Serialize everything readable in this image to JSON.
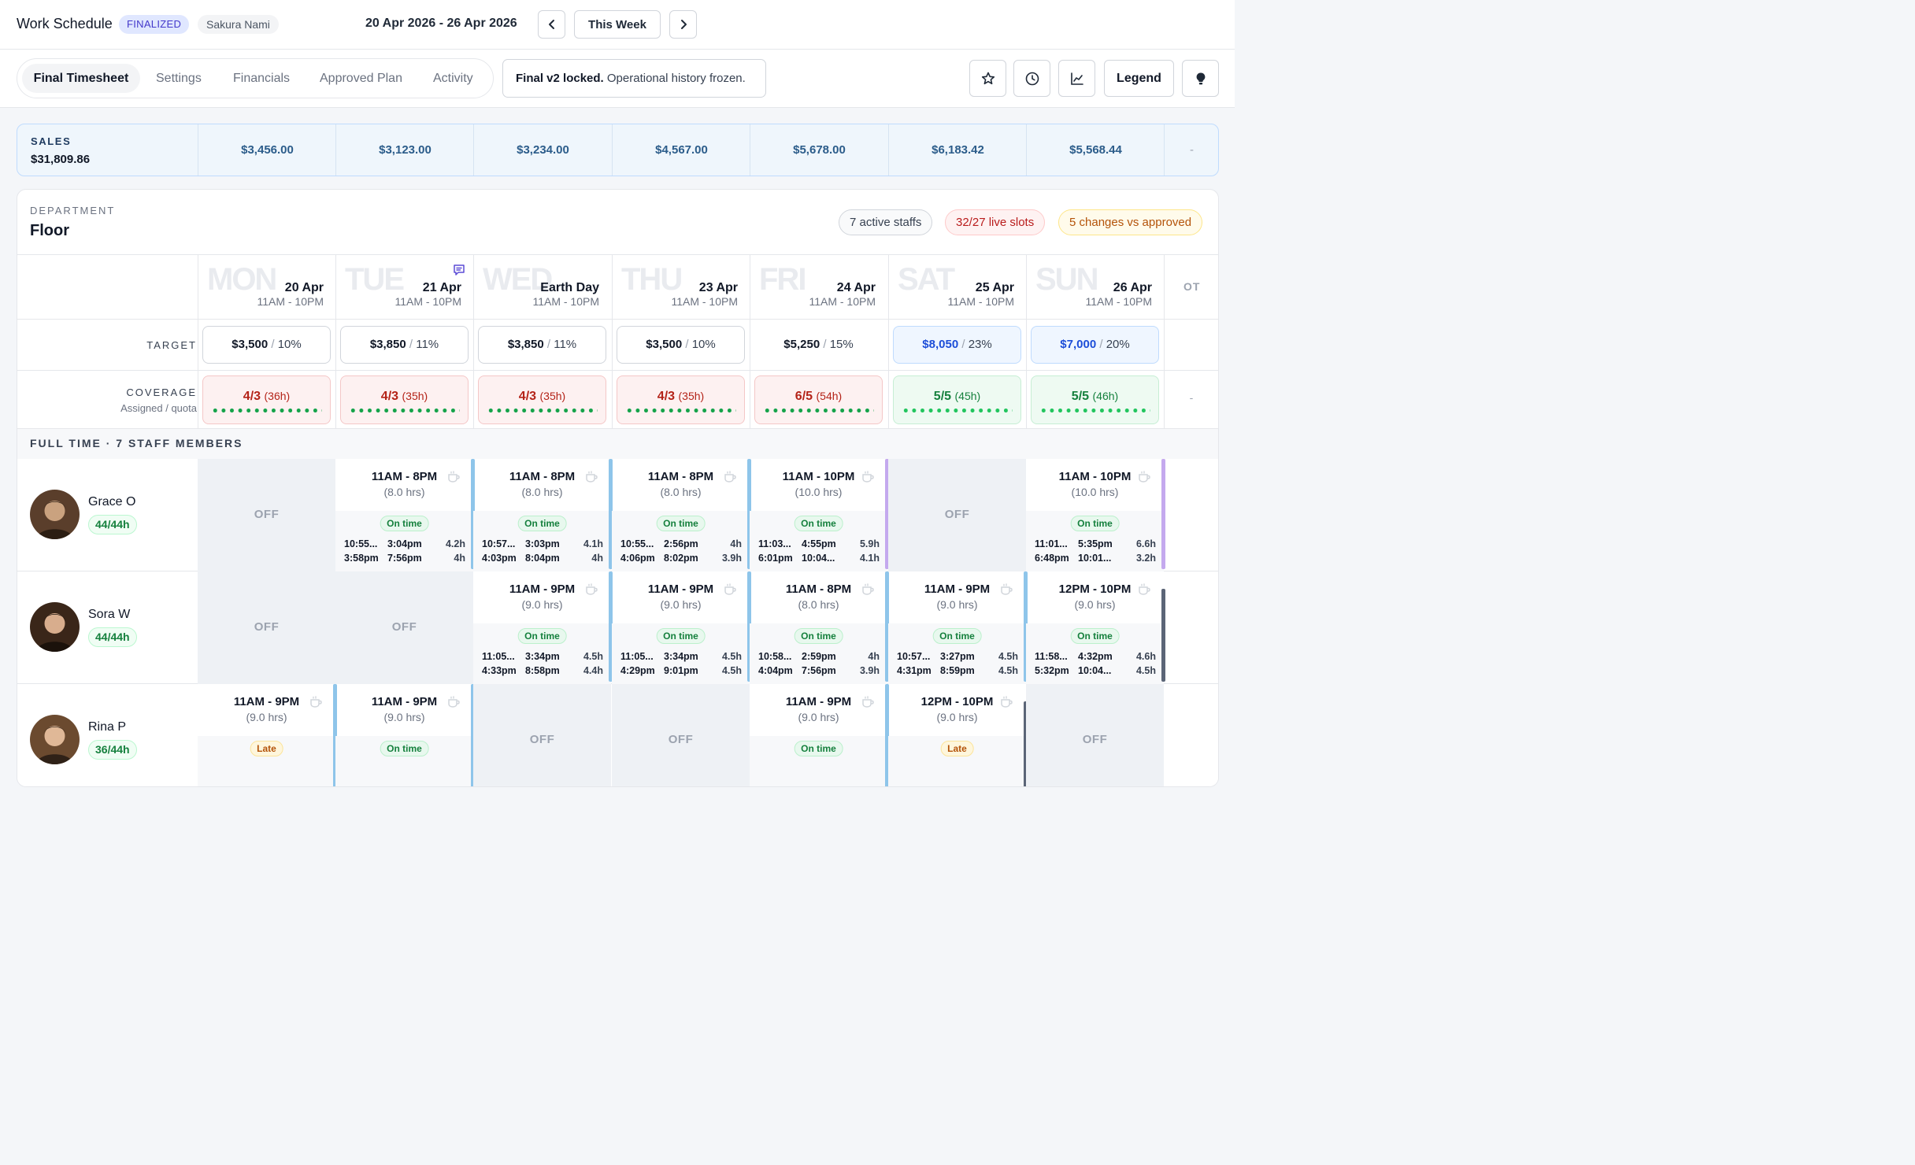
{
  "header": {
    "title": "Work Schedule",
    "status_badge": "FINALIZED",
    "user": "Sakura Nami",
    "date_range": "20 Apr 2026 - 26 Apr 2026",
    "this_week_label": "This Week"
  },
  "tabs": [
    "Final Timesheet",
    "Settings",
    "Financials",
    "Approved Plan",
    "Activity"
  ],
  "active_tab": "Final Timesheet",
  "lock_message": {
    "bold": "Final v2 locked.",
    "rest": "Operational history frozen."
  },
  "toolbar": {
    "legend_label": "Legend",
    "icons": [
      "star-icon",
      "clock-icon",
      "chart-icon",
      "lightbulb-icon"
    ]
  },
  "sales": {
    "label": "SALES",
    "total": "$31,809.86",
    "days": [
      "$3,456.00",
      "$3,123.00",
      "$3,234.00",
      "$4,567.00",
      "$5,678.00",
      "$6,183.42",
      "$5,568.44"
    ],
    "ot": "-"
  },
  "department": {
    "label": "DEPARTMENT",
    "name": "Floor",
    "pills": {
      "active": "7 active staffs",
      "slots": "32/27 live slots",
      "changes": "5 changes vs approved"
    }
  },
  "days": [
    {
      "abbr": "MON",
      "date": "20 Apr",
      "hours": "11AM - 10PM"
    },
    {
      "abbr": "TUE",
      "date": "21 Apr",
      "hours": "11AM - 10PM",
      "note": true
    },
    {
      "abbr": "WED",
      "date": "Earth Day",
      "hours": "11AM - 10PM"
    },
    {
      "abbr": "THU",
      "date": "23 Apr",
      "hours": "11AM - 10PM"
    },
    {
      "abbr": "FRI",
      "date": "24 Apr",
      "hours": "11AM - 10PM"
    },
    {
      "abbr": "SAT",
      "date": "25 Apr",
      "hours": "11AM - 10PM"
    },
    {
      "abbr": "SUN",
      "date": "26 Apr",
      "hours": "11AM - 10PM"
    }
  ],
  "ot_label": "OT",
  "target": {
    "label": "TARGET",
    "values": [
      {
        "amount": "$3,500",
        "pct": "10%"
      },
      {
        "amount": "$3,850",
        "pct": "11%"
      },
      {
        "amount": "$3,850",
        "pct": "11%"
      },
      {
        "amount": "$3,500",
        "pct": "10%"
      },
      {
        "amount": "$5,250",
        "pct": "15%"
      },
      {
        "amount": "$8,050",
        "pct": "23%"
      },
      {
        "amount": "$7,000",
        "pct": "20%"
      }
    ]
  },
  "coverage": {
    "label": "COVERAGE",
    "sublabel": "Assigned / quota",
    "values": [
      {
        "ratio": "4/3",
        "hrs": "(36h)",
        "state": "over"
      },
      {
        "ratio": "4/3",
        "hrs": "(35h)",
        "state": "over"
      },
      {
        "ratio": "4/3",
        "hrs": "(35h)",
        "state": "over"
      },
      {
        "ratio": "4/3",
        "hrs": "(35h)",
        "state": "over"
      },
      {
        "ratio": "6/5",
        "hrs": "(54h)",
        "state": "over"
      },
      {
        "ratio": "5/5",
        "hrs": "(45h)",
        "state": "ok"
      },
      {
        "ratio": "5/5",
        "hrs": "(46h)",
        "state": "ok"
      }
    ],
    "ot": "-"
  },
  "section_label": "FULL TIME · 7 STAFF MEMBERS",
  "staff": [
    {
      "name": "Grace O",
      "hours": "44/44h",
      "shifts": [
        {
          "off": true,
          "label": "OFF"
        },
        {
          "time": "11AM - 8PM",
          "dur": "(8.0 hrs)",
          "status": "On time",
          "p1": [
            "10:55...",
            "3:04pm",
            "4.2h"
          ],
          "p2": [
            "3:58pm",
            "7:56pm",
            "4h"
          ],
          "stripe": "#8ec5ea"
        },
        {
          "time": "11AM - 8PM",
          "dur": "(8.0 hrs)",
          "status": "On time",
          "p1": [
            "10:57...",
            "3:03pm",
            "4.1h"
          ],
          "p2": [
            "4:03pm",
            "8:04pm",
            "4h"
          ],
          "stripe": "#8ec5ea"
        },
        {
          "time": "11AM - 8PM",
          "dur": "(8.0 hrs)",
          "status": "On time",
          "p1": [
            "10:55...",
            "2:56pm",
            "4h"
          ],
          "p2": [
            "4:06pm",
            "8:02pm",
            "3.9h"
          ],
          "stripe": "#8ec5ea"
        },
        {
          "time": "11AM - 10PM",
          "dur": "(10.0 hrs)",
          "status": "On time",
          "p1": [
            "11:03...",
            "4:55pm",
            "5.9h"
          ],
          "p2": [
            "6:01pm",
            "10:04...",
            "4.1h"
          ],
          "stripe": "#c4a9ee"
        },
        {
          "off": true,
          "label": "OFF"
        },
        {
          "time": "11AM - 10PM",
          "dur": "(10.0 hrs)",
          "status": "On time",
          "p1": [
            "11:01...",
            "5:35pm",
            "6.6h"
          ],
          "p2": [
            "6:48pm",
            "10:01...",
            "3.2h"
          ],
          "stripe": "#c4a9ee"
        }
      ]
    },
    {
      "name": "Sora W",
      "hours": "44/44h",
      "shifts": [
        {
          "off": true,
          "label": "OFF"
        },
        {
          "off": true,
          "label": "OFF"
        },
        {
          "time": "11AM - 9PM",
          "dur": "(9.0 hrs)",
          "status": "On time",
          "p1": [
            "11:05...",
            "3:34pm",
            "4.5h"
          ],
          "p2": [
            "4:33pm",
            "8:58pm",
            "4.4h"
          ],
          "stripe": "#8ec5ea"
        },
        {
          "time": "11AM - 9PM",
          "dur": "(9.0 hrs)",
          "status": "On time",
          "p1": [
            "11:05...",
            "3:34pm",
            "4.5h"
          ],
          "p2": [
            "4:29pm",
            "9:01pm",
            "4.5h"
          ],
          "stripe": "#8ec5ea"
        },
        {
          "time": "11AM - 8PM",
          "dur": "(8.0 hrs)",
          "status": "On time",
          "p1": [
            "10:58...",
            "2:59pm",
            "4h"
          ],
          "p2": [
            "4:04pm",
            "7:56pm",
            "3.9h"
          ],
          "stripe": "#8ec5ea"
        },
        {
          "time": "11AM - 9PM",
          "dur": "(9.0 hrs)",
          "status": "On time",
          "p1": [
            "10:57...",
            "3:27pm",
            "4.5h"
          ],
          "p2": [
            "4:31pm",
            "8:59pm",
            "4.5h"
          ],
          "stripe": "#8ec5ea"
        },
        {
          "time": "12PM - 10PM",
          "dur": "(9.0 hrs)",
          "status": "On time",
          "p1": [
            "11:58...",
            "4:32pm",
            "4.6h"
          ],
          "p2": [
            "5:32pm",
            "10:04...",
            "4.5h"
          ],
          "stripe": "#5b6577"
        }
      ]
    },
    {
      "name": "Rina P",
      "hours": "36/44h",
      "shifts": [
        {
          "time": "11AM - 9PM",
          "dur": "(9.0 hrs)",
          "status": "Late",
          "stripe": "#8ec5ea"
        },
        {
          "time": "11AM - 9PM",
          "dur": "(9.0 hrs)",
          "status": "On time",
          "stripe": "#8ec5ea"
        },
        {
          "off": true,
          "label": "OFF"
        },
        {
          "off": true,
          "label": "OFF"
        },
        {
          "time": "11AM - 9PM",
          "dur": "(9.0 hrs)",
          "status": "On time",
          "stripe": "#8ec5ea"
        },
        {
          "time": "12PM - 10PM",
          "dur": "(9.0 hrs)",
          "status": "Late",
          "stripe": "#5b6577"
        },
        {
          "off": true,
          "label": "OFF"
        }
      ]
    }
  ]
}
